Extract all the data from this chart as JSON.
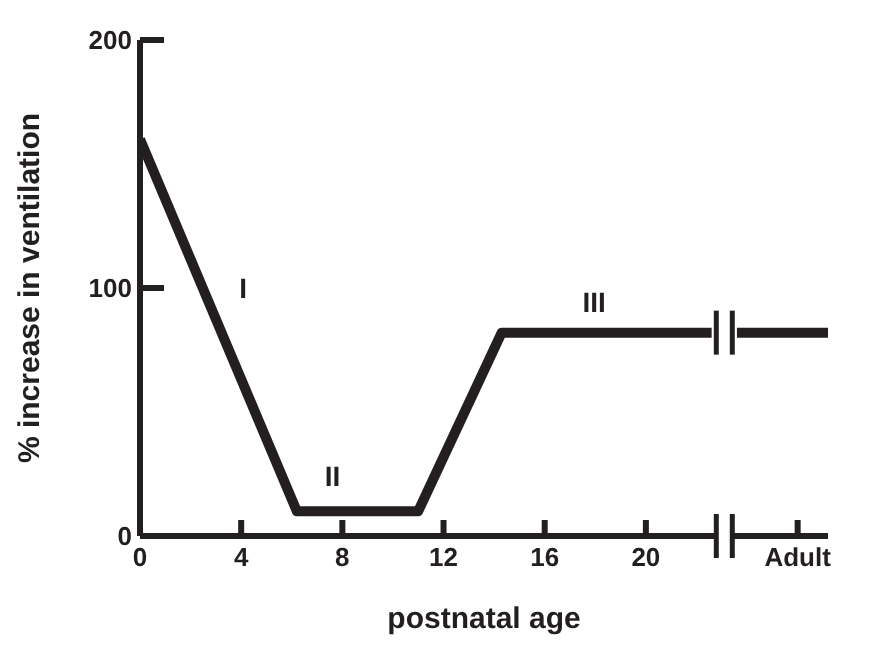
{
  "chart_data": {
    "type": "line",
    "xlabel": "postnatal age",
    "ylabel": "% increase in ventilation",
    "x": [
      0,
      6.2,
      11,
      14.3,
      22.6,
      23.1,
      23.6,
      27.2
    ],
    "series": [
      {
        "color": "#231f20",
        "values": [
          160,
          10,
          10,
          82,
          82,
          null,
          82,
          82
        ]
      }
    ],
    "xlim": [
      0,
      27.2
    ],
    "xticks": [
      0,
      4,
      8,
      12,
      16,
      20,
      {
        "value": 26,
        "label": "Adult"
      }
    ],
    "ylim": [
      0,
      200
    ],
    "yticks": [
      0,
      100,
      200
    ],
    "annotations": [
      "I",
      "II",
      "III"
    ],
    "grid": false,
    "marker": "none",
    "line_style": "solid"
  }
}
